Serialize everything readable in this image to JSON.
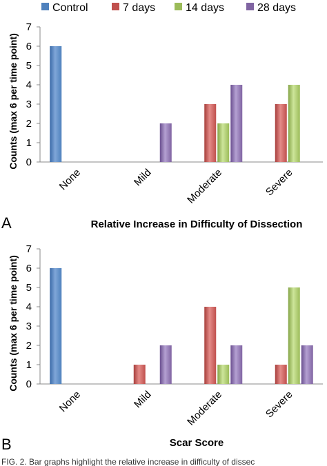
{
  "legend": [
    {
      "name": "Control",
      "color": "#4f81bd"
    },
    {
      "name": "7 days",
      "color": "#c0504d"
    },
    {
      "name": "14 days",
      "color": "#9bbb59"
    },
    {
      "name": "28 days",
      "color": "#8064a2"
    }
  ],
  "chart_data": [
    {
      "type": "bar",
      "panel": "A",
      "title": "Relative Increase in Difficulty of Dissection",
      "ylabel": "Counts (max 6 per time point)",
      "xlabel": "",
      "ylim": [
        0,
        7
      ],
      "yticks": [
        0,
        1,
        2,
        3,
        4,
        5,
        6,
        7
      ],
      "categories": [
        "None",
        "Mild",
        "Moderate",
        "Severe"
      ],
      "series": [
        {
          "name": "Control",
          "values": [
            6,
            0,
            0,
            0
          ]
        },
        {
          "name": "7 days",
          "values": [
            0,
            0,
            3,
            3
          ]
        },
        {
          "name": "14 days",
          "values": [
            0,
            0,
            2,
            4
          ]
        },
        {
          "name": "28 days",
          "values": [
            0,
            2,
            4,
            0
          ]
        }
      ],
      "grid": false,
      "legend_position": "top"
    },
    {
      "type": "bar",
      "panel": "B",
      "title": "Scar Score",
      "ylabel": "Counts (max 6 per time point)",
      "xlabel": "",
      "ylim": [
        0,
        7
      ],
      "yticks": [
        0,
        1,
        2,
        3,
        4,
        5,
        6,
        7
      ],
      "categories": [
        "None",
        "Mild",
        "Moderate",
        "Severe"
      ],
      "series": [
        {
          "name": "Control",
          "values": [
            6,
            0,
            0,
            0
          ]
        },
        {
          "name": "7 days",
          "values": [
            0,
            1,
            4,
            1
          ]
        },
        {
          "name": "14 days",
          "values": [
            0,
            0,
            1,
            5
          ]
        },
        {
          "name": "28 days",
          "values": [
            0,
            2,
            2,
            2
          ]
        }
      ],
      "grid": false
    }
  ],
  "caption": "FIG. 2. Bar graphs highlight the relative increase in difficulty of dissec"
}
